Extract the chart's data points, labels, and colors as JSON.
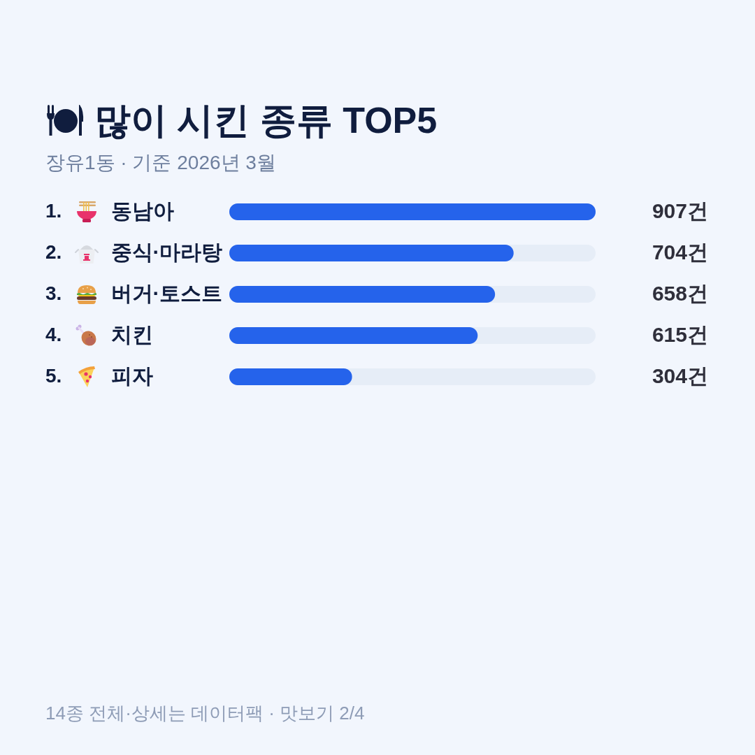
{
  "chart_data": {
    "type": "bar",
    "orientation": "horizontal",
    "title": "많이 시킨 종류 TOP5",
    "subtitle": "장유1동 · 기준 2026년 3월",
    "categories": [
      "동남아",
      "중식·마라탕",
      "버거·토스트",
      "치킨",
      "피자"
    ],
    "values": [
      907,
      704,
      658,
      615,
      304
    ],
    "value_labels": [
      "907건",
      "704건",
      "658건",
      "615건",
      "304건"
    ],
    "color": "#2563eb",
    "xlim": [
      0,
      907
    ],
    "tick_labels": "y",
    "annotations": [
      "1.",
      "2.",
      "3.",
      "4.",
      "5.",
      "14종 전체·상세는 데이터팩 · 맛보기 2/4"
    ]
  }
}
